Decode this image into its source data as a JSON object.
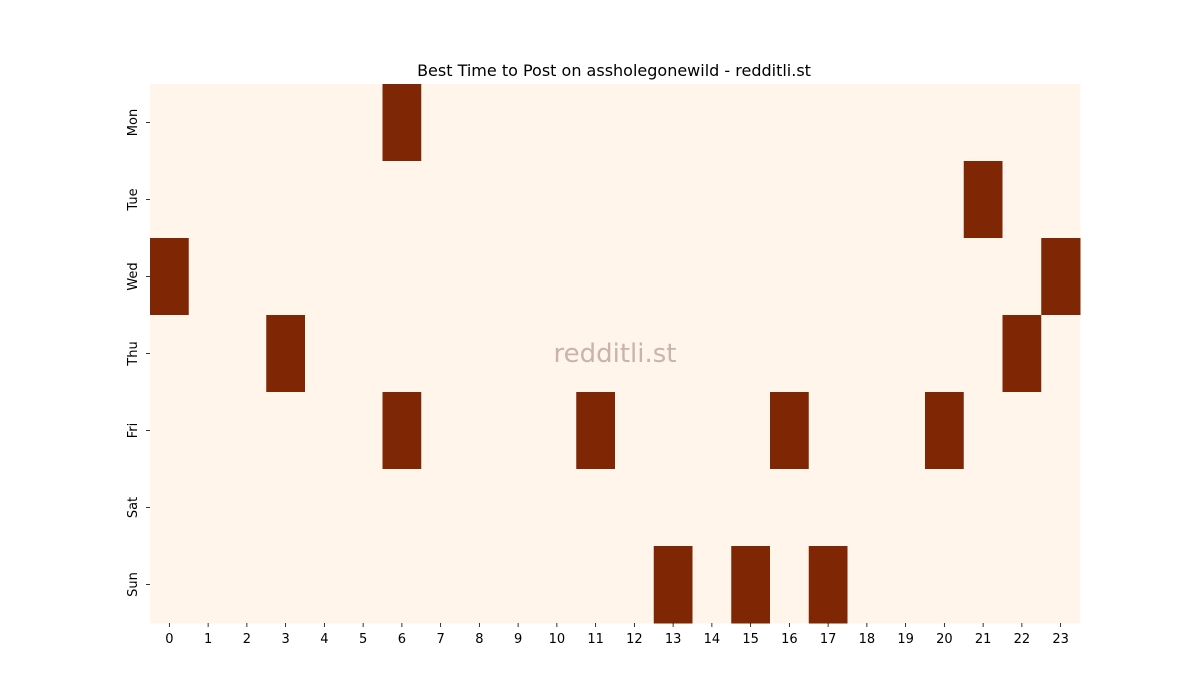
{
  "chart_data": {
    "type": "heatmap",
    "title": "Best Time to Post on assholegonewild - redditli.st",
    "watermark": "redditli.st",
    "x": [
      "0",
      "1",
      "2",
      "3",
      "4",
      "5",
      "6",
      "7",
      "8",
      "9",
      "10",
      "11",
      "12",
      "13",
      "14",
      "15",
      "16",
      "17",
      "18",
      "19",
      "20",
      "21",
      "22",
      "23"
    ],
    "y": [
      "Mon",
      "Tue",
      "Wed",
      "Thu",
      "Fri",
      "Sat",
      "Sun"
    ],
    "xlabel": "",
    "ylabel": "",
    "values": [
      [
        0,
        0,
        0,
        0,
        0,
        0,
        1,
        0,
        0,
        0,
        0,
        0,
        0,
        0,
        0,
        0,
        0,
        0,
        0,
        0,
        0,
        0,
        0,
        0
      ],
      [
        0,
        0,
        0,
        0,
        0,
        0,
        0,
        0,
        0,
        0,
        0,
        0,
        0,
        0,
        0,
        0,
        0,
        0,
        0,
        0,
        0,
        1,
        0,
        0
      ],
      [
        1,
        0,
        0,
        0,
        0,
        0,
        0,
        0,
        0,
        0,
        0,
        0,
        0,
        0,
        0,
        0,
        0,
        0,
        0,
        0,
        0,
        0,
        0,
        1
      ],
      [
        0,
        0,
        0,
        1,
        0,
        0,
        0,
        0,
        0,
        0,
        0,
        0,
        0,
        0,
        0,
        0,
        0,
        0,
        0,
        0,
        0,
        0,
        1,
        0
      ],
      [
        0,
        0,
        0,
        0,
        0,
        0,
        1,
        0,
        0,
        0,
        0,
        1,
        0,
        0,
        0,
        0,
        1,
        0,
        0,
        0,
        1,
        0,
        0,
        0
      ],
      [
        0,
        0,
        0,
        0,
        0,
        0,
        0,
        0,
        0,
        0,
        0,
        0,
        0,
        0,
        0,
        0,
        0,
        0,
        0,
        0,
        0,
        0,
        0,
        0
      ],
      [
        0,
        0,
        0,
        0,
        0,
        0,
        0,
        0,
        0,
        0,
        0,
        0,
        0,
        1,
        0,
        1,
        0,
        1,
        0,
        0,
        0,
        0,
        0,
        0
      ]
    ],
    "colors": {
      "low": "#fff5eb",
      "high": "#7f2704"
    },
    "grid": false,
    "legend": "none"
  }
}
